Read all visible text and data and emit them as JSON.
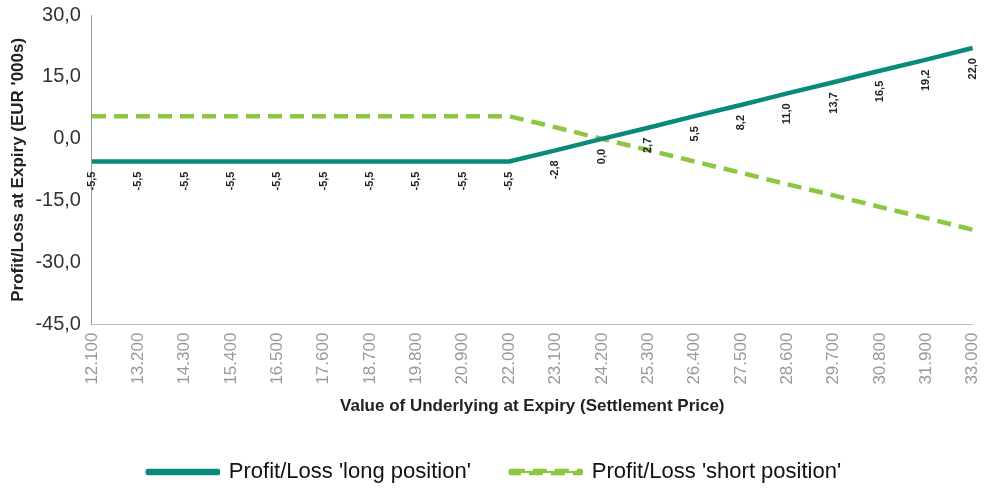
{
  "chart_data": {
    "type": "line",
    "xlabel": "Value of Underlying at Expiry (Settlement Price)",
    "ylabel": "Profit/Loss at Expiry (EUR '000s)",
    "categories": [
      "12.100",
      "13.200",
      "14.300",
      "15.400",
      "16.500",
      "17.600",
      "18.700",
      "19.800",
      "20.900",
      "22.000",
      "23.100",
      "24.200",
      "25.300",
      "26.400",
      "27.500",
      "28.600",
      "29.700",
      "30.800",
      "31.900",
      "33.000"
    ],
    "series": [
      {
        "name": "Profit/Loss 'long position'",
        "color": "#0a8a7a",
        "line_style": "solid",
        "values": [
          -5.5,
          -5.5,
          -5.5,
          -5.5,
          -5.5,
          -5.5,
          -5.5,
          -5.5,
          -5.5,
          -5.5,
          -2.8,
          0.0,
          2.7,
          5.5,
          8.2,
          11.0,
          13.7,
          16.5,
          19.2,
          22.0
        ],
        "value_labels": [
          "-5,5",
          "-5,5",
          "-5,5",
          "-5,5",
          "-5,5",
          "-5,5",
          "-5,5",
          "-5,5",
          "-5,5",
          "-5,5",
          "-2,8",
          "0,0",
          "2,7",
          "5,5",
          "8,2",
          "11,0",
          "13,7",
          "16,5",
          "19,2",
          "22,0"
        ]
      },
      {
        "name": "Profit/Loss 'short position'",
        "color": "#8dc63f",
        "line_style": "dashed",
        "values": [
          5.5,
          5.5,
          5.5,
          5.5,
          5.5,
          5.5,
          5.5,
          5.5,
          5.5,
          5.5,
          2.8,
          0.0,
          -2.7,
          -5.5,
          -8.2,
          -11.0,
          -13.7,
          -16.5,
          -19.2,
          -22.0
        ]
      }
    ],
    "ylim": [
      -45,
      30
    ],
    "yticks": [
      {
        "value": -45,
        "label": "-45,0"
      },
      {
        "value": -30,
        "label": "-30,0"
      },
      {
        "value": -15,
        "label": "-15,0"
      },
      {
        "value": 0,
        "label": "0,0"
      },
      {
        "value": 15,
        "label": "15,0"
      },
      {
        "value": 30,
        "label": "30,0"
      }
    ],
    "grid": false,
    "legend": "bottom",
    "marker": "none"
  }
}
